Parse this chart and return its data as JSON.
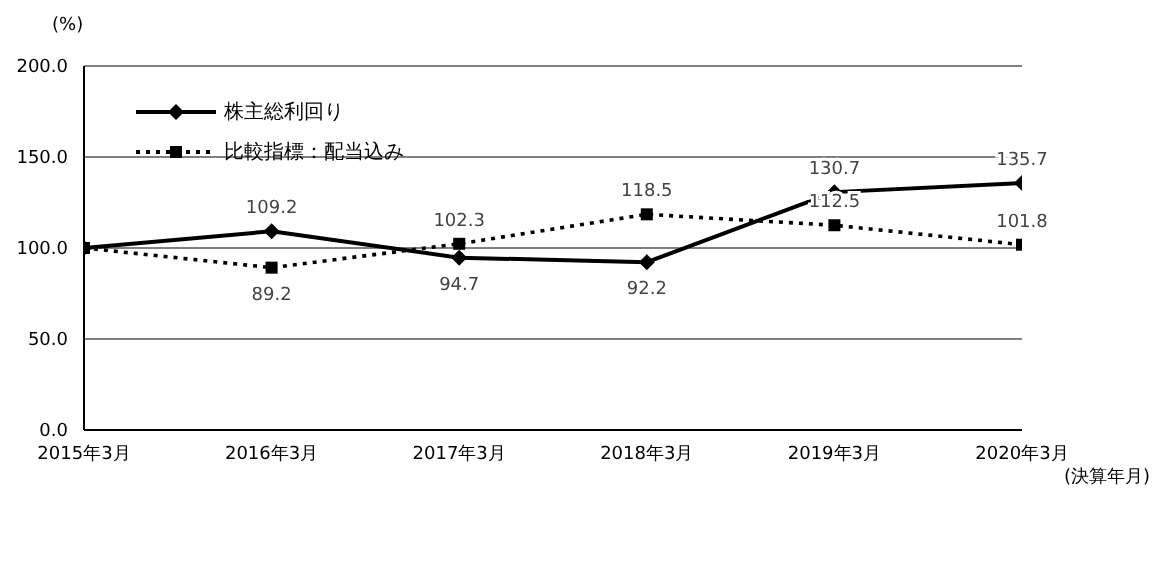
{
  "chart_data": {
    "type": "line",
    "ylabel": "(%)",
    "xlabel": "(決算年月)",
    "categories": [
      "2015年3月",
      "2016年3月",
      "2017年3月",
      "2018年3月",
      "2019年3月",
      "2020年3月"
    ],
    "series": [
      {
        "name": "株主総利回り",
        "color": "#000000",
        "line_style": "solid",
        "marker": "diamond",
        "values": [
          100,
          109.2,
          94.7,
          92.2,
          130.7,
          135.7
        ],
        "value_labels": [
          null,
          "109.2",
          "94.7",
          "92.2",
          "130.7",
          "135.7"
        ]
      },
      {
        "name": "比較指標：配当込み",
        "color": "#000000",
        "line_style": "dotted",
        "marker": "square",
        "values": [
          100,
          89.2,
          102.3,
          118.5,
          112.5,
          101.8
        ],
        "value_labels": [
          null,
          "89.2",
          "102.3",
          "118.5",
          "112.5",
          "101.8"
        ]
      }
    ],
    "ylim": [
      0,
      200
    ],
    "yticks": [
      {
        "value": 0,
        "label": "0.0"
      },
      {
        "value": 50,
        "label": "50.0"
      },
      {
        "value": 100,
        "label": "100.0"
      },
      {
        "value": 150,
        "label": "150.0"
      },
      {
        "value": 200,
        "label": "200.0"
      }
    ],
    "grid": "y",
    "legend": "top left"
  }
}
